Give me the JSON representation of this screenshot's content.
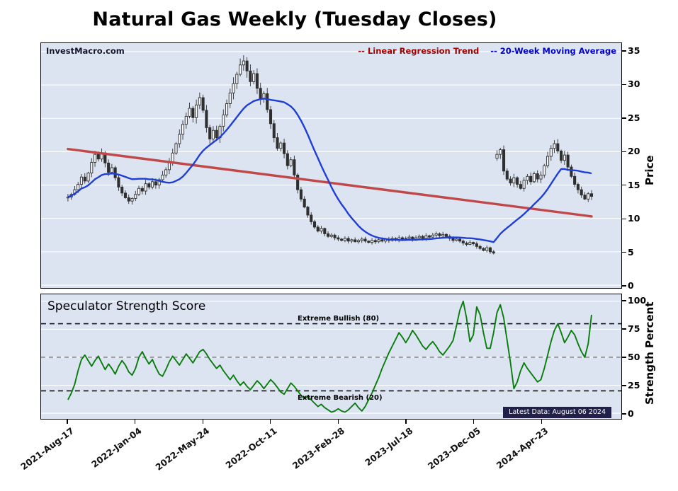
{
  "title": "Natural Gas Weekly (Tuesday Closes)",
  "watermark": "InvestMacro.com",
  "legend": {
    "trend": "-- Linear Regression Trend",
    "ma": "-- 20-Week Moving Average"
  },
  "price_axis": {
    "label": "Price",
    "ticks": [
      0,
      5,
      10,
      15,
      20,
      25,
      30,
      35
    ]
  },
  "strength_axis": {
    "label": "Strength Percent",
    "ticks": [
      0,
      25,
      50,
      75,
      100
    ]
  },
  "x_ticks": [
    "2021-Aug-17",
    "2022-Jan-04",
    "2022-May-24",
    "2022-Oct-11",
    "2023-Feb-28",
    "2023-Jul-18",
    "2023-Dec-05",
    "2024-Apr-23"
  ],
  "strength_panel": {
    "title": "Speculator Strength Score",
    "bullish_label": "Extreme Bullish (80)",
    "bearish_label": "Extreme Bearish (20)",
    "latest": "Latest Data: August 06 2024"
  },
  "colors": {
    "panel_bg": "#dce4f2",
    "grid": "#ffffff",
    "trend": "#c04848",
    "trend_text": "#a00000",
    "ma": "#1e3ed6",
    "ma_text": "#0000cc",
    "strength_line": "#087d0b",
    "candle": "#2f2f2f",
    "badge_bg": "#20204a",
    "threshold_dark": "#111111",
    "threshold_mid": "#7a7a7a"
  },
  "chart_data": [
    {
      "type": "candlestick",
      "title": "Natural Gas Weekly (Tuesday Closes)",
      "ylabel": "Price",
      "ylim": [
        0,
        35
      ],
      "x_tick_weeks": [
        0,
        20,
        40,
        60,
        80,
        100,
        120,
        140
      ],
      "ma_window": 20,
      "trend_line": {
        "start_value": 20.4,
        "end_value": 10.3
      },
      "closes": [
        13.2,
        13.6,
        14.3,
        15.1,
        16.2,
        15.6,
        16.8,
        18.4,
        19.6,
        18.9,
        19.8,
        18.3,
        16.9,
        17.6,
        16.1,
        14.7,
        13.8,
        13.1,
        12.6,
        13.0,
        13.6,
        14.5,
        14.1,
        15.2,
        14.7,
        15.5,
        15.0,
        15.8,
        16.5,
        17.3,
        18.5,
        19.8,
        21.2,
        22.6,
        24.1,
        25.3,
        26.5,
        25.1,
        27.0,
        28.1,
        26.2,
        23.6,
        21.9,
        23.2,
        22.1,
        23.8,
        25.5,
        27.2,
        28.8,
        30.2,
        31.6,
        33.0,
        33.6,
        32.1,
        30.5,
        31.7,
        29.5,
        27.9,
        28.7,
        26.3,
        24.2,
        22.1,
        20.5,
        21.3,
        19.7,
        17.9,
        18.8,
        16.5,
        14.3,
        12.9,
        11.7,
        10.5,
        9.5,
        8.7,
        8.1,
        8.5,
        7.7,
        7.3,
        7.5,
        7.1,
        6.9,
        6.7,
        7.0,
        6.6,
        6.8,
        6.5,
        6.7,
        6.9,
        6.6,
        6.4,
        6.7,
        6.5,
        6.8,
        6.6,
        6.9,
        6.7,
        7.0,
        6.8,
        7.1,
        6.9,
        7.0,
        7.2,
        6.9,
        7.1,
        7.3,
        7.0,
        7.4,
        7.2,
        7.5,
        7.7,
        7.4,
        7.6,
        7.3,
        7.0,
        6.7,
        6.9,
        6.6,
        6.3,
        6.1,
        6.4,
        6.2,
        5.8,
        5.5,
        5.2,
        5.6,
        5.0,
        4.8,
        19.6,
        20.3,
        17.1,
        15.9,
        15.3,
        16.1,
        15.1,
        14.5,
        15.7,
        16.3,
        15.5,
        16.7,
        15.9,
        16.5,
        17.9,
        19.3,
        20.5,
        21.2,
        20.1,
        18.7,
        19.5,
        17.7,
        16.3,
        15.1,
        14.3,
        13.5,
        12.9,
        13.7,
        13.3
      ]
    },
    {
      "type": "line",
      "title": "Speculator Strength Score",
      "ylabel": "Strength Percent",
      "ylim": [
        0,
        100
      ],
      "thresholds": {
        "extreme_bullish": 80,
        "midline": 50,
        "extreme_bearish": 20
      },
      "values": [
        12,
        18,
        26,
        38,
        48,
        52,
        47,
        42,
        47,
        51,
        45,
        39,
        44,
        40,
        35,
        42,
        47,
        43,
        37,
        34,
        40,
        50,
        55,
        49,
        44,
        48,
        41,
        35,
        33,
        39,
        46,
        51,
        47,
        43,
        48,
        53,
        49,
        45,
        50,
        55,
        57,
        53,
        48,
        44,
        40,
        43,
        38,
        34,
        30,
        34,
        29,
        25,
        28,
        24,
        21,
        25,
        29,
        26,
        22,
        26,
        30,
        27,
        23,
        19,
        17,
        22,
        27,
        24,
        20,
        16,
        13,
        15,
        12,
        9,
        6,
        8,
        5,
        3,
        1,
        2,
        4,
        2,
        1,
        3,
        6,
        9,
        5,
        2,
        6,
        12,
        18,
        25,
        32,
        40,
        47,
        54,
        60,
        66,
        72,
        68,
        63,
        68,
        74,
        70,
        65,
        60,
        57,
        61,
        64,
        60,
        55,
        52,
        56,
        60,
        65,
        78,
        92,
        100,
        85,
        64,
        70,
        95,
        88,
        72,
        58,
        58,
        72,
        90,
        97,
        85,
        65,
        45,
        22,
        28,
        38,
        45,
        40,
        36,
        32,
        28,
        30,
        40,
        52,
        64,
        74,
        80,
        72,
        63,
        68,
        74,
        70,
        62,
        55,
        50,
        62,
        88
      ]
    }
  ]
}
